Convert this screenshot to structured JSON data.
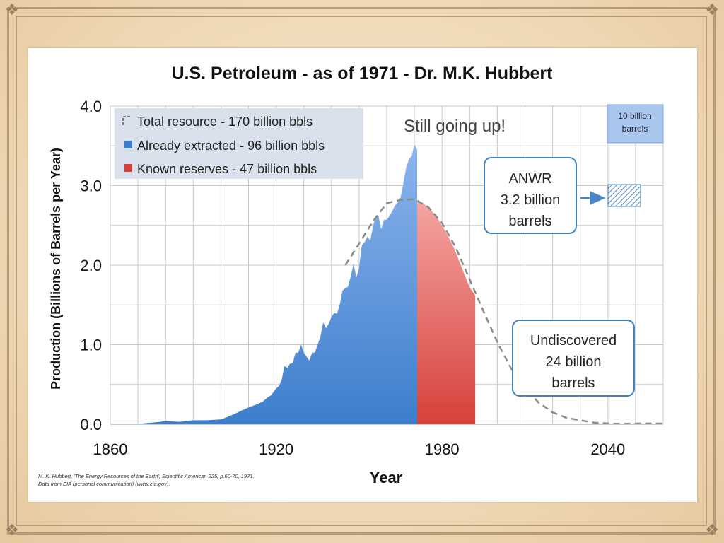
{
  "colors": {
    "extracted_top": "#8db4ee",
    "extracted_bottom": "#3c7ecb",
    "reserves_top": "#f4a5a2",
    "reserves_bottom": "#d6403a",
    "hubbert_curve": "#8a8a8a",
    "grid": "#c8c8c8",
    "callout_border": "#3f82bd",
    "legend_bg": "#d9e1ec"
  },
  "chart_data": {
    "type": "area",
    "title": "U.S. Petroleum - as of 1971 - Dr. M.K. Hubbert",
    "xlabel": "Year",
    "ylabel": "Production (Billions of Barrels per Year)",
    "xlim": [
      1860,
      2060
    ],
    "ylim": [
      0,
      4
    ],
    "x_ticks": [
      "1860",
      "1920",
      "1980",
      "2040"
    ],
    "y_ticks": [
      "0.0",
      "1.0",
      "2.0",
      "3.0",
      "4.0"
    ],
    "grid": true,
    "legend_position": "top-left",
    "legend": [
      {
        "label": "Total resource - 170 billion bbls",
        "icon": "dashed-line-icon"
      },
      {
        "label": "Already extracted - 96 billion bbls",
        "icon": "blue-square-icon"
      },
      {
        "label": "Known reserves - 47 billion bbls",
        "icon": "red-square-icon"
      }
    ],
    "series": [
      {
        "name": "Already extracted - 96 billion bbls",
        "x": [
          1860,
          1870,
          1875,
          1878,
          1880,
          1885,
          1890,
          1895,
          1900,
          1903,
          1905,
          1908,
          1910,
          1913,
          1915,
          1917,
          1918,
          1920,
          1921,
          1922,
          1923,
          1924,
          1925,
          1926,
          1927,
          1928,
          1929,
          1930,
          1931,
          1932,
          1933,
          1934,
          1935,
          1936,
          1937,
          1938,
          1939,
          1940,
          1941,
          1942,
          1943,
          1944,
          1945,
          1946,
          1947,
          1948,
          1949,
          1950,
          1951,
          1952,
          1953,
          1954,
          1955,
          1956,
          1957,
          1958,
          1959,
          1960,
          1961,
          1962,
          1963,
          1964,
          1965,
          1966,
          1967,
          1968,
          1969,
          1970,
          1971
        ],
        "y": [
          0.0,
          0.005,
          0.02,
          0.03,
          0.04,
          0.03,
          0.05,
          0.05,
          0.06,
          0.1,
          0.13,
          0.18,
          0.21,
          0.25,
          0.28,
          0.34,
          0.36,
          0.45,
          0.48,
          0.56,
          0.73,
          0.71,
          0.76,
          0.77,
          0.9,
          0.9,
          1.0,
          0.9,
          0.85,
          0.8,
          0.9,
          0.9,
          1.0,
          1.1,
          1.28,
          1.21,
          1.26,
          1.35,
          1.4,
          1.39,
          1.5,
          1.68,
          1.71,
          1.73,
          1.86,
          2.02,
          1.84,
          1.97,
          2.25,
          2.29,
          2.36,
          2.31,
          2.48,
          2.62,
          2.62,
          2.45,
          2.57,
          2.57,
          2.62,
          2.68,
          2.75,
          2.79,
          2.85,
          3.03,
          3.22,
          3.33,
          3.37,
          3.52,
          3.45
        ]
      },
      {
        "name": "Known reserves - 47 billion bbls",
        "x": [
          1971,
          1972,
          1975,
          1978,
          1980,
          1983,
          1985,
          1988,
          1990,
          1992
        ],
        "y": [
          2.81,
          2.8,
          2.73,
          2.61,
          2.5,
          2.31,
          2.16,
          1.89,
          1.72,
          1.62
        ]
      },
      {
        "name": "Total resource - 170 billion bbls",
        "style": "dashed",
        "x": [
          1945,
          1950,
          1955,
          1960,
          1965,
          1970,
          1975,
          1980,
          1985,
          1990,
          1995,
          2000,
          2005,
          2010,
          2015,
          2020,
          2025,
          2030,
          2035,
          2040,
          2045,
          2050,
          2060
        ],
        "y": [
          2.0,
          2.27,
          2.55,
          2.78,
          2.82,
          2.83,
          2.73,
          2.53,
          2.22,
          1.82,
          1.42,
          1.03,
          0.7,
          0.45,
          0.27,
          0.15,
          0.08,
          0.05,
          0.02,
          0.01,
          0.005,
          0.0,
          0.0
        ]
      }
    ],
    "annotations": [
      {
        "text": "Still going up!"
      },
      {
        "text": "10 billion barrels",
        "lines": [
          "10 billion",
          "barrels"
        ]
      },
      {
        "text": "ANWR 3.2 billion barrels",
        "lines": [
          "ANWR",
          "3.2 billion",
          "barrels"
        ]
      },
      {
        "text": "Undiscovered 24 billion barrels",
        "lines": [
          "Undiscovered",
          "24 billion",
          "barrels"
        ]
      }
    ]
  },
  "citation": {
    "line1": "M. K. Hubbert, 'The Energy Resources of the Earth', Scientific American 225, p.60-70, 1971.",
    "line2": "Data from EIA (personal communication) (www.eia.gov)."
  }
}
